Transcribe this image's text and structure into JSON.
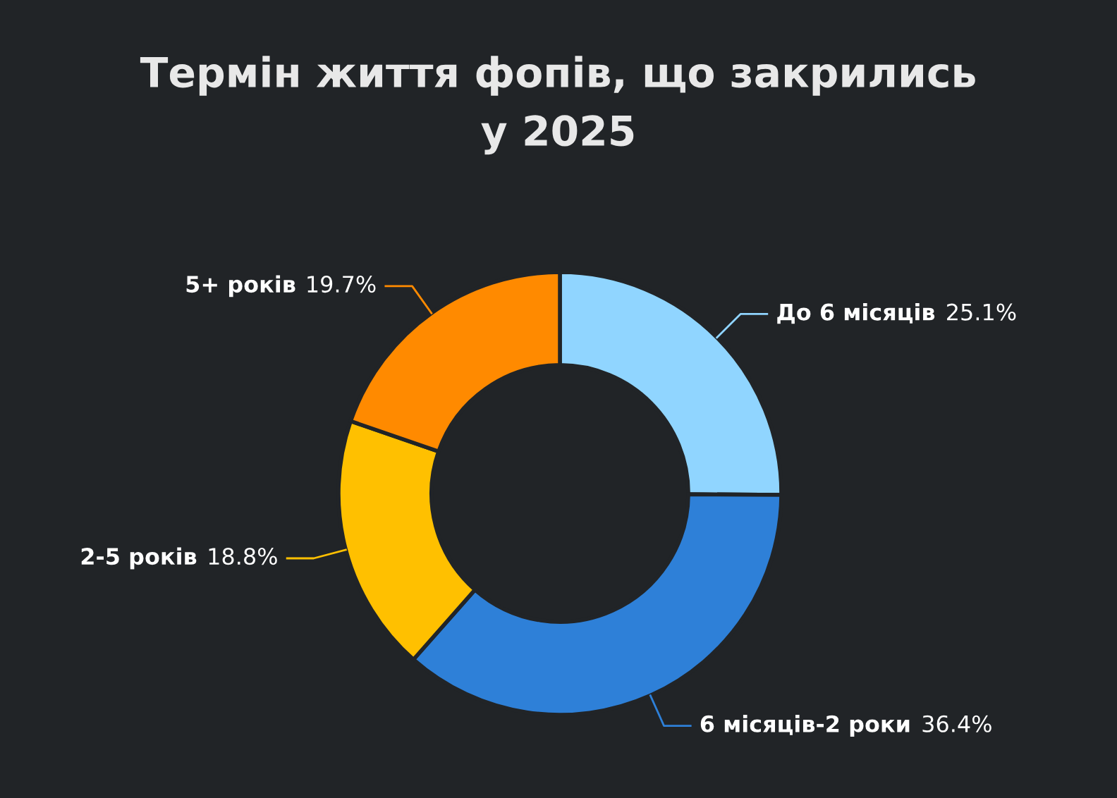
{
  "chart_data": {
    "type": "donut",
    "title": "Термін життя фопів, що закрились\nу 2025",
    "categories": [
      "До 6 місяців",
      "6 місяців-2 роки",
      "2-5 років",
      "5+ років"
    ],
    "values": [
      25.1,
      36.4,
      18.8,
      19.7
    ],
    "colors": [
      "#90d5ff",
      "#2e80d8",
      "#ffc000",
      "#ff8a00"
    ],
    "value_labels": [
      "25.1%",
      "36.4%",
      "18.8%",
      "19.7%"
    ],
    "legend": false
  }
}
